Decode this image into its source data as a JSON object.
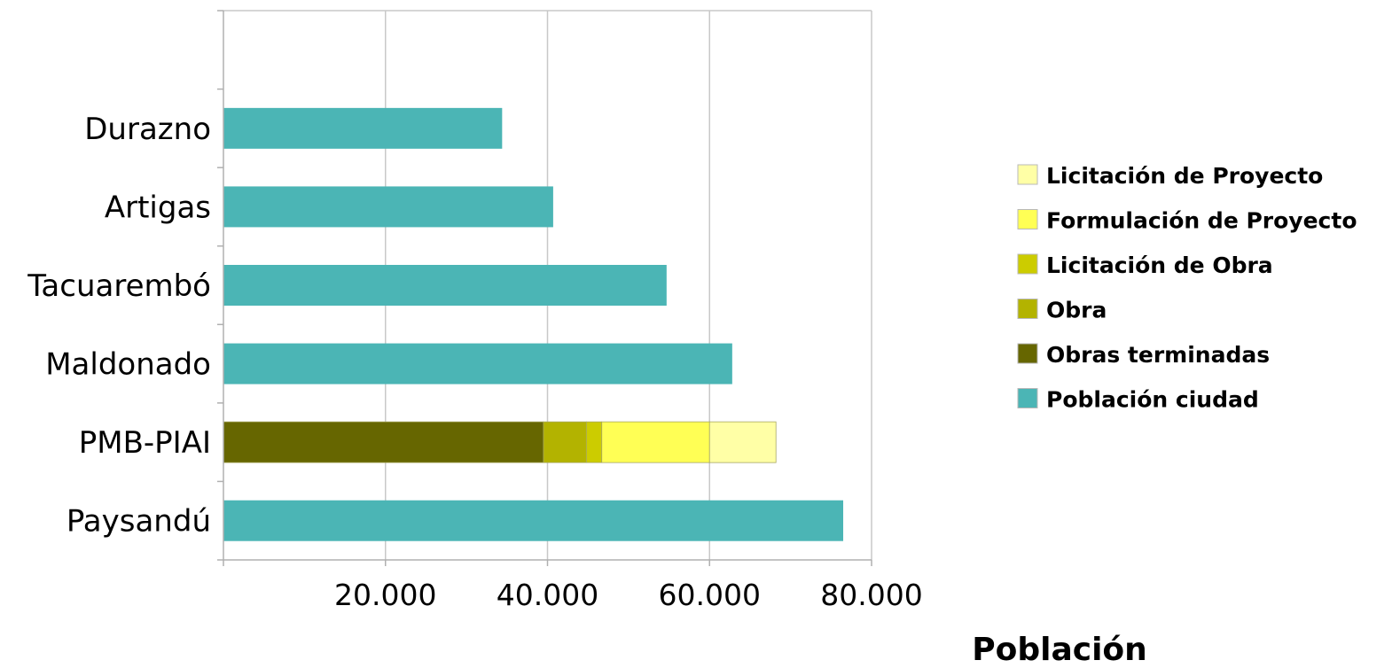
{
  "chart_data": {
    "type": "bar",
    "orientation": "horizontal",
    "stacked": true,
    "title": "",
    "xlabel": "Población",
    "ylabel": "",
    "xlim": [
      0,
      80000
    ],
    "xticks": [
      20000,
      40000,
      60000,
      80000
    ],
    "xtick_labels": [
      "20.000",
      "40.000",
      "60.000",
      "80.000"
    ],
    "grid": true,
    "legend_position": "right",
    "categories": [
      "Durazno",
      "Artigas",
      "Tacuarembó",
      "Maldonado",
      "PMB-PIAI",
      "Paysandú"
    ],
    "series": [
      {
        "name": "Población ciudad",
        "color": "#4BB5B5",
        "values": [
          34400,
          40700,
          54700,
          62800,
          0,
          76500
        ]
      },
      {
        "name": "Obras terminadas",
        "color": "#666600",
        "values": [
          0,
          0,
          0,
          0,
          39500,
          0
        ]
      },
      {
        "name": "Obra",
        "color": "#B3B300",
        "values": [
          0,
          0,
          0,
          0,
          5300,
          0
        ]
      },
      {
        "name": "Licitación de Obra",
        "color": "#CCCC00",
        "values": [
          0,
          0,
          0,
          0,
          1900,
          0
        ]
      },
      {
        "name": "Formulación de Proyecto",
        "color": "#FFFF55",
        "values": [
          0,
          0,
          0,
          0,
          13300,
          0
        ]
      },
      {
        "name": "Licitación de Proyecto",
        "color": "#FFFFA6",
        "values": [
          0,
          0,
          0,
          0,
          8200,
          0
        ]
      }
    ],
    "legend_order": [
      "Licitación de Proyecto",
      "Formulación de Proyecto",
      "Licitación de Obra",
      "Obra",
      "Obras terminadas",
      "Población ciudad"
    ]
  }
}
